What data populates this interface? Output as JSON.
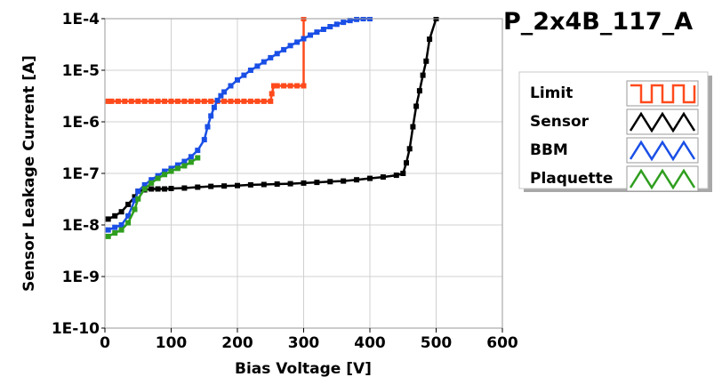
{
  "chart_data": {
    "type": "line",
    "title": "P_2x4B_117_A",
    "xlabel": "Bias Voltage [V]",
    "ylabel": "Sensor Leakage Current [A]",
    "xlim": [
      0,
      600
    ],
    "ylim": [
      1e-10,
      0.0001
    ],
    "y_scale": "log",
    "x_ticks": [
      0,
      100,
      200,
      300,
      400,
      500,
      600
    ],
    "x_tick_labels": [
      "0",
      "100",
      "200",
      "300",
      "400",
      "500",
      "600"
    ],
    "y_ticks": [
      1e-10,
      1e-09,
      1e-08,
      1e-07,
      1e-06,
      1e-05,
      0.0001
    ],
    "y_tick_labels": [
      "1E-10",
      "1E-9",
      "1E-8",
      "1E-7",
      "1E-6",
      "1E-5",
      "1E-4"
    ],
    "grid": true,
    "legend_position": "right",
    "series": [
      {
        "name": "Limit",
        "color": "#ff4a1c",
        "x": [
          5,
          10,
          20,
          30,
          40,
          50,
          60,
          70,
          80,
          90,
          100,
          110,
          120,
          130,
          140,
          150,
          160,
          170,
          180,
          190,
          200,
          210,
          220,
          230,
          240,
          250,
          252,
          255,
          260,
          270,
          280,
          290,
          300,
          300
        ],
        "y": [
          2.5e-06,
          2.5e-06,
          2.5e-06,
          2.5e-06,
          2.5e-06,
          2.5e-06,
          2.5e-06,
          2.5e-06,
          2.5e-06,
          2.5e-06,
          2.5e-06,
          2.5e-06,
          2.5e-06,
          2.5e-06,
          2.5e-06,
          2.5e-06,
          2.5e-06,
          2.5e-06,
          2.5e-06,
          2.5e-06,
          2.5e-06,
          2.5e-06,
          2.5e-06,
          2.5e-06,
          2.5e-06,
          2.5e-06,
          3.5e-06,
          5e-06,
          5e-06,
          5e-06,
          5e-06,
          5e-06,
          5e-06,
          0.0001
        ]
      },
      {
        "name": "Sensor",
        "color": "#000000",
        "x": [
          5,
          15,
          25,
          35,
          45,
          50,
          60,
          70,
          80,
          90,
          100,
          120,
          140,
          160,
          180,
          200,
          220,
          240,
          260,
          280,
          300,
          320,
          340,
          360,
          380,
          400,
          420,
          440,
          450,
          455,
          460,
          465,
          470,
          475,
          480,
          485,
          490,
          500
        ],
        "y": [
          1.3e-08,
          1.5e-08,
          1.8e-08,
          2.5e-08,
          3.5e-08,
          4.5e-08,
          4.8e-08,
          5e-08,
          5e-08,
          5e-08,
          5.1e-08,
          5.2e-08,
          5.4e-08,
          5.6e-08,
          5.7e-08,
          5.8e-08,
          6e-08,
          6.1e-08,
          6.2e-08,
          6.3e-08,
          6.5e-08,
          6.7e-08,
          6.9e-08,
          7.1e-08,
          7.5e-08,
          8e-08,
          8.5e-08,
          9.2e-08,
          1e-07,
          1.6e-07,
          3e-07,
          8e-07,
          2e-06,
          4e-06,
          8e-06,
          1.5e-05,
          4e-05,
          0.0001
        ]
      },
      {
        "name": "BBM",
        "color": "#1a4fe6",
        "x": [
          5,
          15,
          25,
          35,
          45,
          50,
          60,
          70,
          80,
          90,
          100,
          110,
          120,
          130,
          140,
          150,
          155,
          160,
          165,
          170,
          175,
          180,
          190,
          200,
          210,
          220,
          230,
          240,
          250,
          260,
          270,
          280,
          290,
          300,
          310,
          320,
          330,
          340,
          350,
          360,
          370,
          380,
          390,
          400
        ],
        "y": [
          8e-09,
          9e-09,
          1e-08,
          1.5e-08,
          3e-08,
          4.5e-08,
          6e-08,
          7.5e-08,
          9e-08,
          1.1e-07,
          1.25e-07,
          1.45e-07,
          1.7e-07,
          2.1e-07,
          2.8e-07,
          4.5e-07,
          8e-07,
          1.3e-06,
          1.9e-06,
          2.6e-06,
          3.2e-06,
          3.8e-06,
          5e-06,
          6.5e-06,
          8e-06,
          1e-05,
          1.2e-05,
          1.45e-05,
          1.75e-05,
          2.1e-05,
          2.5e-05,
          3e-05,
          3.5e-05,
          4.1e-05,
          4.8e-05,
          5.5e-05,
          6.2e-05,
          7e-05,
          7.8e-05,
          8.5e-05,
          9.2e-05,
          9.7e-05,
          0.0001,
          0.0001
        ]
      },
      {
        "name": "Plaquette",
        "color": "#2f9e1f",
        "x": [
          5,
          15,
          25,
          35,
          45,
          50,
          60,
          70,
          80,
          90,
          100,
          110,
          120,
          130,
          140
        ],
        "y": [
          6e-09,
          7e-09,
          8e-09,
          1.1e-08,
          2e-08,
          3.2e-08,
          5e-08,
          6.5e-08,
          8e-08,
          9.5e-08,
          1.1e-07,
          1.25e-07,
          1.4e-07,
          1.65e-07,
          2e-07
        ]
      }
    ]
  }
}
